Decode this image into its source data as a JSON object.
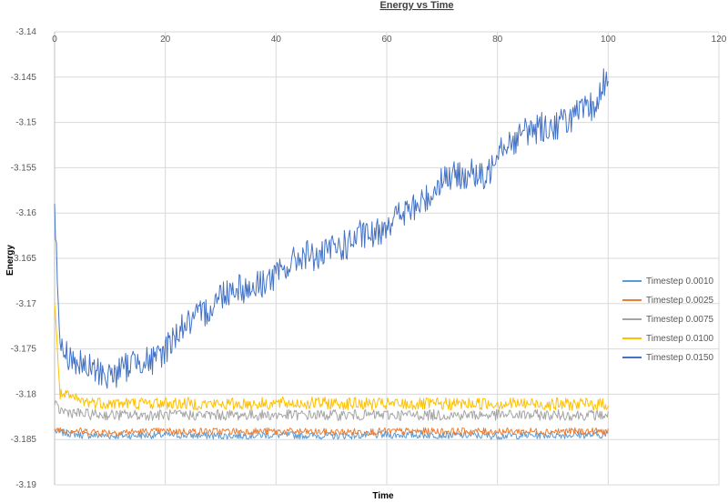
{
  "chart_data": {
    "type": "line",
    "title": "Energy vs Time",
    "xlabel": "Time",
    "ylabel": "Energy",
    "xlim": [
      0,
      120
    ],
    "ylim": [
      -3.19,
      -3.14
    ],
    "x_ticks": [
      0,
      20,
      40,
      60,
      80,
      100,
      120
    ],
    "y_ticks": [
      -3.14,
      -3.145,
      -3.15,
      -3.155,
      -3.16,
      -3.165,
      -3.17,
      -3.175,
      -3.18,
      -3.185,
      -3.19
    ],
    "x_tick_labels": [
      "0",
      "20",
      "40",
      "60",
      "80",
      "100",
      "120"
    ],
    "y_tick_labels": [
      "-3.14",
      "-3.145",
      "-3.15",
      "-3.155",
      "-3.16",
      "-3.165",
      "-3.17",
      "-3.175",
      "-3.18",
      "-3.185",
      "-3.19"
    ],
    "x_axis_position": "top",
    "grid": true,
    "legend_position": "right",
    "series": [
      {
        "name": "Timestep 0.0010",
        "color": "#5B9BD5",
        "x": [
          0,
          1,
          5,
          10,
          20,
          30,
          40,
          50,
          60,
          70,
          80,
          90,
          100
        ],
        "y": [
          -3.1841,
          -3.1842,
          -3.1845,
          -3.1846,
          -3.1845,
          -3.1846,
          -3.1845,
          -3.1846,
          -3.1845,
          -3.1845,
          -3.1846,
          -3.1845,
          -3.1845
        ]
      },
      {
        "name": "Timestep 0.0025",
        "color": "#ED7D31",
        "x": [
          0,
          1,
          5,
          10,
          20,
          30,
          40,
          50,
          60,
          70,
          80,
          90,
          100
        ],
        "y": [
          -3.1838,
          -3.1839,
          -3.1841,
          -3.1842,
          -3.1841,
          -3.1841,
          -3.1841,
          -3.1842,
          -3.1841,
          -3.1841,
          -3.1841,
          -3.1841,
          -3.1841
        ]
      },
      {
        "name": "Timestep 0.0075",
        "color": "#A5A5A5",
        "x": [
          0,
          1,
          5,
          10,
          20,
          30,
          40,
          50,
          60,
          70,
          80,
          90,
          100
        ],
        "y": [
          -3.1812,
          -3.1818,
          -3.1822,
          -3.1823,
          -3.1823,
          -3.1823,
          -3.1823,
          -3.1823,
          -3.1823,
          -3.1823,
          -3.1823,
          -3.1823,
          -3.1823
        ]
      },
      {
        "name": "Timestep 0.0100",
        "color": "#FFC000",
        "x": [
          0,
          1,
          5,
          10,
          20,
          30,
          40,
          50,
          60,
          70,
          80,
          90,
          100
        ],
        "y": [
          -3.17,
          -3.18,
          -3.1808,
          -3.181,
          -3.181,
          -3.1811,
          -3.181,
          -3.181,
          -3.1811,
          -3.1811,
          -3.181,
          -3.1811,
          -3.1811
        ]
      },
      {
        "name": "Timestep 0.0150",
        "color": "#4472C4",
        "x": [
          0,
          1,
          3,
          5,
          8,
          10,
          13,
          15,
          18,
          20,
          23,
          25,
          28,
          30,
          33,
          35,
          38,
          40,
          43,
          45,
          48,
          50,
          53,
          55,
          58,
          60,
          63,
          65,
          68,
          70,
          73,
          75,
          78,
          80,
          83,
          85,
          88,
          90,
          93,
          95,
          98,
          100
        ],
        "y": [
          -3.159,
          -3.175,
          -3.176,
          -3.177,
          -3.1775,
          -3.178,
          -3.177,
          -3.176,
          -3.1765,
          -3.175,
          -3.1725,
          -3.172,
          -3.1705,
          -3.169,
          -3.168,
          -3.1685,
          -3.1675,
          -3.167,
          -3.1655,
          -3.1645,
          -3.165,
          -3.164,
          -3.1635,
          -3.1625,
          -3.1625,
          -3.161,
          -3.16,
          -3.1595,
          -3.158,
          -3.156,
          -3.156,
          -3.1555,
          -3.1565,
          -3.1525,
          -3.152,
          -3.151,
          -3.1505,
          -3.1505,
          -3.1495,
          -3.149,
          -3.148,
          -3.144
        ]
      }
    ]
  }
}
